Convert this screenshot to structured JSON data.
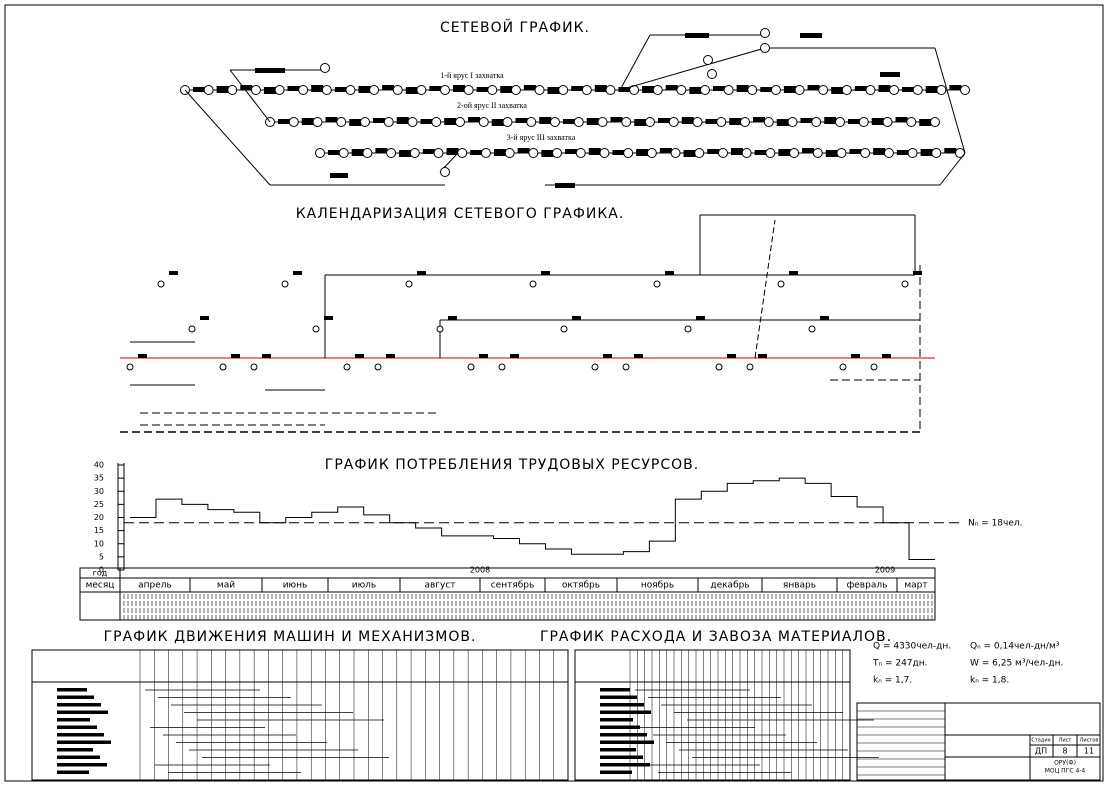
{
  "network": {
    "title": "СЕТЕВОЙ ГРАФИК.",
    "tier_labels": [
      "1-й ярус I захватка",
      "2-ой ярус II захватка",
      "3-й ярус III захватка"
    ]
  },
  "calendar": {
    "title": "КАЛЕНДАРИЗАЦИЯ СЕТЕВОГО ГРАФИКА."
  },
  "resources": {
    "title": "ГРАФИК ПОТРЕБЛЕНИЯ ТРУДОВЫХ РЕСУРСОВ.",
    "ylim": [
      0,
      40
    ],
    "yticks": [
      0,
      5,
      10,
      15,
      20,
      25,
      30,
      35,
      40
    ],
    "values": [
      20,
      27,
      25,
      23,
      22,
      18,
      20,
      22,
      24,
      21,
      18,
      16,
      13,
      13,
      12,
      10,
      8,
      6,
      6,
      7,
      11,
      27,
      30,
      33,
      34,
      35,
      33,
      28,
      24,
      18,
      4
    ],
    "norm": 18,
    "norm_label": "Nₙ = 18чел."
  },
  "timeline": {
    "year_label": "год",
    "month_label": "месяц",
    "years": [
      "2008",
      "2009"
    ],
    "months": [
      "апрель",
      "май",
      "июнь",
      "июль",
      "август",
      "сентябрь",
      "октябрь",
      "ноябрь",
      "декабрь",
      "январь",
      "февраль",
      "март"
    ]
  },
  "machines": {
    "title": "ГРАФИК ДВИЖЕНИЯ МАШИН И МЕХАНИЗМОВ."
  },
  "materials": {
    "title": "ГРАФИК РАСХОДА И ЗАВОЗА МАТЕРИАЛОВ."
  },
  "summary": [
    "Q = 4330чел-дн.",
    "Qₙ = 0,14чел-дн/м³",
    "Tₙ = 247дн.",
    "W = 6,25 м³/чел-дн.",
    "kₙ = 1,7.",
    "kₙ = 1,8."
  ],
  "stamp": {
    "headers": [
      "Стадия",
      "Лист",
      "Листов"
    ],
    "cells": [
      "ДП",
      "8",
      "11"
    ],
    "org": [
      "ОРУ(Ф)",
      "МОЦ ПГС 4-4"
    ]
  }
}
